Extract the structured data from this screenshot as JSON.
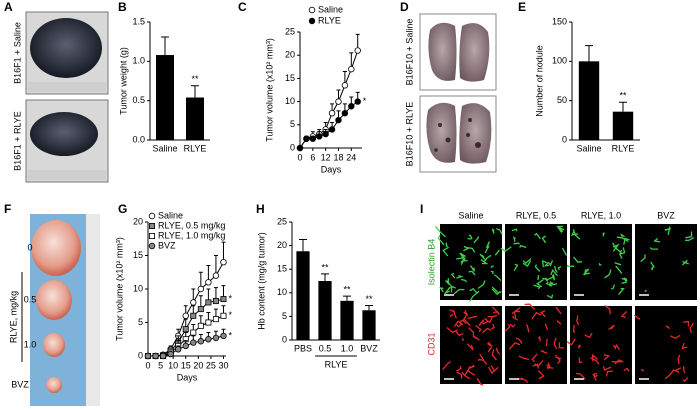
{
  "panels": {
    "A": {
      "letter": "A",
      "labels": [
        "B16F1 + Saline",
        "B16F1 + RLYE"
      ]
    },
    "D": {
      "letter": "D",
      "labels": [
        "B16F10 + Saline",
        "B16F10 + RLYE"
      ]
    },
    "F": {
      "letter": "F",
      "axis_label": "RLYE, mg/kg",
      "labels": [
        "0",
        "0.5",
        "1.0",
        "BVZ"
      ]
    },
    "I": {
      "letter": "I",
      "columns": [
        "Saline",
        "RLYE, 0.5",
        "RLYE, 1.0",
        "BVZ"
      ],
      "rows": [
        "Isolectin B4",
        "CD31"
      ]
    }
  },
  "chart_data": [
    {
      "type": "bar",
      "letter": "B",
      "ylabel": "Tumor weight (g)",
      "categories": [
        "Saline",
        "RLYE"
      ],
      "values": [
        1.08,
        0.54
      ],
      "errors": [
        0.23,
        0.15
      ],
      "significance": [
        null,
        "**"
      ],
      "color": "#000000",
      "ylim": [
        0,
        1.5
      ],
      "yticks": [
        {
          "value": 0,
          "label": "0.0"
        },
        0.5,
        {
          "value": 1,
          "label": "1.0"
        },
        1.5
      ]
    },
    {
      "type": "line",
      "letter": "C",
      "ylabel": "Tumor volume (x10² mm³)",
      "xlabel": "Days",
      "x": [
        0,
        3,
        6,
        9,
        12,
        15,
        18,
        21,
        24,
        27
      ],
      "series": [
        {
          "name": "Saline",
          "color": "#ffffff",
          "marker": "circle",
          "values": [
            0,
            2,
            2.5,
            3,
            4,
            7.5,
            10,
            13.5,
            17,
            21
          ],
          "errors": [
            0,
            0.5,
            1,
            1,
            1.5,
            2,
            2.5,
            3,
            3.5,
            3.5
          ]
        },
        {
          "name": "RLYE",
          "color": "#000000",
          "marker": "circle",
          "values": [
            0,
            2,
            2,
            2.5,
            3,
            4,
            6,
            7.5,
            9,
            10
          ],
          "errors": [
            0,
            0.5,
            0.5,
            1,
            1,
            1.5,
            2,
            2,
            2,
            2
          ],
          "significance": "*"
        }
      ],
      "xlim": [
        0,
        29
      ],
      "xticks": [
        0,
        6,
        12,
        18,
        24
      ],
      "ylim": [
        0,
        25
      ],
      "yticks": [
        0,
        5,
        10,
        15,
        20,
        25
      ]
    },
    {
      "type": "bar",
      "letter": "E",
      "ylabel": "Number of nodule",
      "categories": [
        "Saline",
        "RLYE"
      ],
      "values": [
        100,
        36
      ],
      "errors": [
        20,
        12
      ],
      "significance": [
        null,
        "**"
      ],
      "color": "#000000",
      "ylim": [
        0,
        150
      ],
      "yticks": [
        0,
        50,
        100,
        150
      ]
    },
    {
      "type": "line",
      "letter": "G",
      "ylabel": "Tumor volume (x10² mm³)",
      "xlabel": "Days",
      "x": [
        0,
        3,
        6,
        9,
        12,
        15,
        18,
        21,
        24,
        27,
        30
      ],
      "series": [
        {
          "name": "Saline",
          "color": "#ffffff",
          "marker": "circle",
          "values": [
            0,
            0,
            0.2,
            1,
            3,
            6,
            8,
            10,
            11,
            12,
            14
          ],
          "errors": [
            0,
            0,
            0.2,
            0.5,
            1,
            1.5,
            2,
            2.5,
            2.5,
            3,
            3
          ]
        },
        {
          "name": "RLYE, 0.5 mg/kg",
          "color": "#888888",
          "marker": "square",
          "values": [
            0,
            0,
            0.1,
            0.8,
            2,
            4,
            6,
            7,
            8,
            8.2,
            8.5
          ],
          "errors": [
            0,
            0,
            0.1,
            0.4,
            1,
            1.5,
            1.5,
            2,
            2,
            2,
            2
          ],
          "significance": "*"
        },
        {
          "name": "RLYE, 1.0 mg/kg",
          "color": "#ffffff",
          "marker": "square",
          "values": [
            0,
            0,
            0,
            0.5,
            1.5,
            2.5,
            3.5,
            4.5,
            5,
            5.5,
            6
          ],
          "errors": [
            0,
            0,
            0,
            0.3,
            0.8,
            1,
            1.2,
            1.5,
            1.5,
            1.5,
            1.5
          ],
          "significance": "*"
        },
        {
          "name": "BVZ",
          "color": "#888888",
          "marker": "circle",
          "values": [
            0,
            0,
            0,
            0.3,
            1,
            1.5,
            2,
            2.2,
            2.5,
            2.7,
            3
          ],
          "errors": [
            0,
            0,
            0,
            0.2,
            0.5,
            0.8,
            1,
            1,
            1,
            1,
            1
          ],
          "significance": "*"
        }
      ],
      "xlim": [
        0,
        31
      ],
      "xticks": [
        0,
        5,
        10,
        15,
        20,
        25,
        30
      ],
      "ylim": [
        0,
        20
      ],
      "yticks": [
        0,
        5,
        10,
        15,
        20
      ]
    },
    {
      "type": "bar",
      "letter": "H",
      "ylabel": "Hb content (mg/g tumor)",
      "categories": [
        "PBS",
        "0.5",
        "1.0",
        "BVZ"
      ],
      "values": [
        18.8,
        12.5,
        8.3,
        6.3
      ],
      "errors": [
        2.5,
        1.5,
        1,
        1
      ],
      "significance": [
        null,
        "**",
        "**",
        "**"
      ],
      "color": "#000000",
      "group": {
        "label": "RLYE",
        "categories": [
          "0.5",
          "1.0"
        ]
      },
      "ylim": [
        0,
        25
      ],
      "yticks": [
        0,
        5,
        10,
        15,
        20,
        25
      ]
    }
  ]
}
